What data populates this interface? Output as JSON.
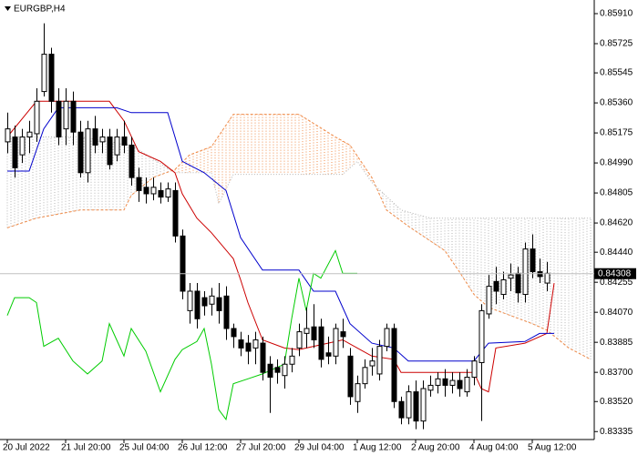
{
  "chart_data": {
    "type": "candlestick",
    "title": "EURGBP,H4",
    "ylim": [
      0.83286,
      0.85994
    ],
    "yticks": [
      {
        "value": 0.8591,
        "label": "0.85910"
      },
      {
        "value": 0.85725,
        "label": "0.85725"
      },
      {
        "value": 0.85545,
        "label": "0.85545"
      },
      {
        "value": 0.8536,
        "label": "0.85360"
      },
      {
        "value": 0.85175,
        "label": "0.85175"
      },
      {
        "value": 0.8499,
        "label": "0.84990"
      },
      {
        "value": 0.84805,
        "label": "0.84805"
      },
      {
        "value": 0.8462,
        "label": "0.84620"
      },
      {
        "value": 0.8444,
        "label": "0.84440"
      },
      {
        "value": 0.84255,
        "label": "0.84255"
      },
      {
        "value": 0.8407,
        "label": "0.84070"
      },
      {
        "value": 0.83885,
        "label": "0.83885"
      },
      {
        "value": 0.837,
        "label": "0.83700"
      },
      {
        "value": 0.8352,
        "label": "0.83520"
      },
      {
        "value": 0.83335,
        "label": "0.83335"
      }
    ],
    "xlim": [
      -1,
      80.5
    ],
    "xticks": [
      {
        "value": 0,
        "label": "20 Jul 2022"
      },
      {
        "value": 8,
        "label": "21 Jul 20:00"
      },
      {
        "value": 16,
        "label": "25 Jul 04:00"
      },
      {
        "value": 24,
        "label": "26 Jul 12:00"
      },
      {
        "value": 32,
        "label": "27 Jul 20:00"
      },
      {
        "value": 40,
        "label": "29 Jul 04:00"
      },
      {
        "value": 48,
        "label": "1 Aug 12:00"
      },
      {
        "value": 56,
        "label": "2 Aug 20:00"
      },
      {
        "value": 64,
        "label": "4 Aug 04:00"
      },
      {
        "value": 72,
        "label": "5 Aug 12:00"
      }
    ],
    "current_price": {
      "value": 0.84308,
      "label": "0.84308"
    },
    "open": [
      0.8512,
      0.8515,
      0.8504,
      0.8515,
      0.8517,
      0.8543,
      0.8566,
      0.8537,
      0.852,
      0.8537,
      0.8518,
      0.8493,
      0.852,
      0.8512,
      0.8515,
      0.8504,
      0.8515,
      0.851,
      0.849,
      0.8484,
      0.848,
      0.8482,
      0.8478,
      0.8482,
      0.8454,
      0.8408,
      0.842,
      0.8416,
      0.8412,
      0.8416,
      0.8417,
      0.8397,
      0.839,
      0.8388,
      0.8385,
      0.8388,
      0.8375,
      0.8373,
      0.8368,
      0.8375,
      0.8385,
      0.8394,
      0.8398,
      0.8398,
      0.8382,
      0.838,
      0.8395,
      0.838,
      0.8352,
      0.8363,
      0.8374,
      0.8369,
      0.8386,
      0.8397,
      0.8352,
      0.8342,
      0.8358,
      0.834,
      0.8359,
      0.8362,
      0.8366,
      0.8362,
      0.8365,
      0.8358,
      0.8367,
      0.8376,
      0.8406,
      0.8426,
      0.8418,
      0.8428,
      0.8431,
      0.8418,
      0.8446,
      0.8432,
      0.8425
    ],
    "high": [
      0.853,
      0.8522,
      0.852,
      0.8525,
      0.8545,
      0.8585,
      0.857,
      0.8545,
      0.8545,
      0.8543,
      0.8525,
      0.8525,
      0.8528,
      0.852,
      0.852,
      0.852,
      0.8525,
      0.8515,
      0.8496,
      0.849,
      0.849,
      0.8487,
      0.8487,
      0.8487,
      0.8458,
      0.8425,
      0.8425,
      0.842,
      0.8422,
      0.8425,
      0.8423,
      0.84,
      0.8395,
      0.8393,
      0.8395,
      0.8392,
      0.838,
      0.8378,
      0.838,
      0.8385,
      0.84,
      0.841,
      0.8412,
      0.8403,
      0.8392,
      0.84,
      0.8403,
      0.8385,
      0.8368,
      0.8378,
      0.8385,
      0.839,
      0.84,
      0.84,
      0.8355,
      0.8362,
      0.8365,
      0.8365,
      0.8368,
      0.837,
      0.8372,
      0.837,
      0.837,
      0.8372,
      0.838,
      0.8412,
      0.843,
      0.8435,
      0.8432,
      0.8437,
      0.8435,
      0.845,
      0.8455,
      0.844,
      0.8438
    ],
    "low": [
      0.8505,
      0.849,
      0.8499,
      0.8505,
      0.8512,
      0.854,
      0.853,
      0.851,
      0.851,
      0.851,
      0.849,
      0.8487,
      0.8505,
      0.8505,
      0.8495,
      0.85,
      0.8505,
      0.8485,
      0.8475,
      0.8474,
      0.8476,
      0.8474,
      0.8475,
      0.845,
      0.8415,
      0.84,
      0.8397,
      0.8405,
      0.8405,
      0.84,
      0.839,
      0.8385,
      0.838,
      0.8375,
      0.8375,
      0.8365,
      0.8345,
      0.8363,
      0.836,
      0.837,
      0.838,
      0.8385,
      0.8385,
      0.8373,
      0.8375,
      0.8375,
      0.8385,
      0.835,
      0.8345,
      0.836,
      0.8368,
      0.8365,
      0.8383,
      0.8348,
      0.8338,
      0.8338,
      0.8335,
      0.8335,
      0.8355,
      0.8357,
      0.8355,
      0.8357,
      0.8355,
      0.8355,
      0.8362,
      0.834,
      0.8403,
      0.8412,
      0.8415,
      0.842,
      0.8413,
      0.8413,
      0.8428,
      0.8425,
      0.842
    ],
    "close": [
      0.852,
      0.8496,
      0.8515,
      0.8518,
      0.8537,
      0.8566,
      0.8537,
      0.8515,
      0.8537,
      0.8518,
      0.8493,
      0.852,
      0.851,
      0.8515,
      0.8498,
      0.8515,
      0.851,
      0.849,
      0.8482,
      0.848,
      0.8484,
      0.8478,
      0.8483,
      0.8454,
      0.842,
      0.842,
      0.8403,
      0.8411,
      0.8417,
      0.8408,
      0.8397,
      0.8392,
      0.8385,
      0.8383,
      0.839,
      0.837,
      0.8367,
      0.837,
      0.8375,
      0.838,
      0.8395,
      0.8397,
      0.839,
      0.8378,
      0.838,
      0.8397,
      0.8392,
      0.8355,
      0.8363,
      0.8373,
      0.8377,
      0.8386,
      0.8397,
      0.8352,
      0.8342,
      0.8358,
      0.834,
      0.836,
      0.8362,
      0.8366,
      0.8362,
      0.8365,
      0.836,
      0.8367,
      0.8377,
      0.8408,
      0.8423,
      0.842,
      0.8427,
      0.843,
      0.8419,
      0.8446,
      0.8432,
      0.8429,
      0.8431
    ],
    "lines": [
      {
        "color": "#cc0000",
        "x": [
          0,
          4,
          14,
          16,
          18,
          21,
          23,
          24,
          26,
          28,
          31,
          32,
          33,
          35,
          38,
          40,
          42,
          44,
          46,
          48,
          50,
          53,
          54,
          64,
          65,
          66,
          67,
          71,
          74,
          75
        ],
        "values": [
          0.8515,
          0.8537,
          0.8537,
          0.8525,
          0.8506,
          0.85,
          0.8493,
          0.848,
          0.8465,
          0.8456,
          0.844,
          0.8427,
          0.8413,
          0.839,
          0.8385,
          0.8384,
          0.8386,
          0.8388,
          0.839,
          0.8385,
          0.838,
          0.8378,
          0.837,
          0.837,
          0.836,
          0.8358,
          0.8385,
          0.8388,
          0.8394,
          0.8425
        ]
      },
      {
        "color": "#0000cc",
        "x": [
          0,
          3,
          5,
          7,
          15,
          17,
          22,
          24,
          27,
          30,
          32,
          35,
          40,
          42,
          45,
          47,
          50,
          53,
          55,
          64,
          66,
          71,
          73,
          75
        ],
        "values": [
          0.8494,
          0.8494,
          0.852,
          0.8533,
          0.8533,
          0.853,
          0.853,
          0.85,
          0.8493,
          0.8482,
          0.8453,
          0.8433,
          0.8433,
          0.842,
          0.842,
          0.84,
          0.8388,
          0.8385,
          0.8377,
          0.8377,
          0.8388,
          0.8389,
          0.8394,
          0.8394
        ]
      },
      {
        "color": "#00cc00",
        "x": [
          0,
          1,
          3,
          4,
          5,
          7,
          9,
          11,
          13,
          14,
          16,
          17,
          19,
          21,
          23,
          24,
          26,
          27,
          28,
          29,
          30,
          31,
          33,
          35,
          38,
          39,
          40,
          41,
          42,
          43,
          45,
          46,
          48
        ],
        "values": [
          0.8405,
          0.8416,
          0.8416,
          0.8413,
          0.8386,
          0.8391,
          0.8377,
          0.8369,
          0.8377,
          0.84,
          0.838,
          0.8397,
          0.8383,
          0.8358,
          0.8378,
          0.8384,
          0.8389,
          0.8397,
          0.8375,
          0.8347,
          0.8341,
          0.8363,
          0.8366,
          0.8369,
          0.8375,
          0.8403,
          0.8428,
          0.8408,
          0.8431,
          0.8428,
          0.8445,
          0.8431,
          0.8431
        ]
      }
    ],
    "cloud": {
      "up_color": "#f08c4a",
      "down_color": "#b4b4b4",
      "span_a": {
        "x": [
          0,
          4,
          10,
          16,
          17,
          20,
          23,
          25,
          28,
          31,
          40,
          45,
          47,
          50,
          52,
          55,
          60,
          62,
          64,
          66,
          69,
          72,
          74,
          77,
          80
        ],
        "values": [
          0.8459,
          0.8465,
          0.847,
          0.847,
          0.8479,
          0.849,
          0.8495,
          0.8504,
          0.8509,
          0.8529,
          0.8529,
          0.8515,
          0.851,
          0.849,
          0.847,
          0.846,
          0.8445,
          0.8432,
          0.8418,
          0.841,
          0.8405,
          0.84,
          0.8396,
          0.8385,
          0.8378
        ]
      },
      "span_b": {
        "x": [
          0,
          10,
          17,
          23,
          28,
          29,
          31,
          46,
          48,
          50,
          54,
          58,
          62,
          80
        ],
        "values": [
          0.8515,
          0.8515,
          0.851,
          0.8493,
          0.8493,
          0.8474,
          0.8492,
          0.8492,
          0.85,
          0.8487,
          0.847,
          0.8465,
          0.8465,
          0.8465
        ]
      }
    }
  }
}
